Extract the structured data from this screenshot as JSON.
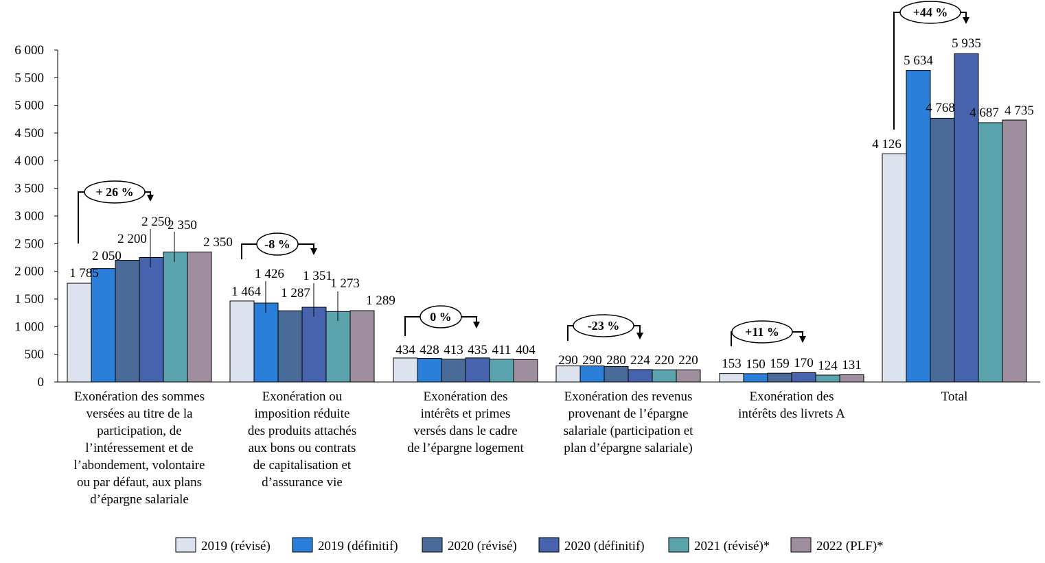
{
  "chart_data": {
    "type": "bar",
    "title": "",
    "xlabel": "",
    "ylabel": "",
    "ylim": [
      0,
      6000
    ],
    "yticks": [
      0,
      500,
      1000,
      1500,
      2000,
      2500,
      3000,
      3500,
      4000,
      4500,
      5000,
      5500,
      6000
    ],
    "ytick_labels": [
      "0",
      "500",
      "1 000",
      "1 500",
      "2 000",
      "2 500",
      "3 000",
      "3 500",
      "4 000",
      "4 500",
      "5 000",
      "5 500",
      "6 000"
    ],
    "grid": false,
    "legend_position": "bottom",
    "categories": [
      [
        "Exonération des sommes",
        "versées au titre de la",
        "participation, de",
        "l’intéressement et de",
        "l’abondement, volontaire",
        "ou par défaut, aux plans",
        "d’épargne salariale"
      ],
      [
        "Exonération ou",
        "imposition réduite",
        "des produits attachés",
        "aux bons ou contrats",
        "de capitalisation et",
        "d’assurance vie"
      ],
      [
        "Exonération des",
        "intérêts et primes",
        "versés dans le cadre",
        "de l’épargne logement"
      ],
      [
        "Exonération des revenus",
        "provenant de l’épargne",
        "salariale (participation et",
        "plan d’épargne salariale)"
      ],
      [
        "Exonération des",
        "intérêts des livrets A"
      ],
      [
        "Total"
      ]
    ],
    "series": [
      {
        "name": "2019 (révisé)",
        "color": "#DDE3EE",
        "values": [
          1785,
          1464,
          434,
          290,
          153,
          4126
        ],
        "labels": [
          "1 785",
          "1 464",
          "434",
          "290",
          "153",
          "4 126"
        ]
      },
      {
        "name": "2019 (définitif)",
        "color": "#2B7FD8",
        "values": [
          2050,
          1426,
          428,
          290,
          150,
          5634
        ],
        "labels": [
          "2 050",
          "1 426",
          "428",
          "290",
          "150",
          "5 634"
        ]
      },
      {
        "name": "2020 (révisé)",
        "color": "#4A6A98",
        "values": [
          2200,
          1287,
          413,
          280,
          159,
          4768
        ],
        "labels": [
          "2 200",
          "1 287",
          "413",
          "280",
          "159",
          "4 768"
        ]
      },
      {
        "name": "2020 (définitif)",
        "color": "#4863AE",
        "values": [
          2250,
          1351,
          435,
          224,
          170,
          5935
        ],
        "labels": [
          "2 250",
          "1 351",
          "435",
          "224",
          "170",
          "5 935"
        ]
      },
      {
        "name": "2021 (révisé)*",
        "color": "#5BA3AD",
        "values": [
          2350,
          1273,
          411,
          220,
          124,
          4687
        ],
        "labels": [
          "2 350",
          "1 273",
          "411",
          "220",
          "124",
          "4 687"
        ]
      },
      {
        "name": "2022 (PLF)*",
        "color": "#9E8E9E",
        "values": [
          2350,
          1289,
          404,
          220,
          131,
          4735
        ],
        "labels": [
          "2 350",
          "1 289",
          "404",
          "220",
          "131",
          "4 735"
        ]
      }
    ],
    "annotations": [
      {
        "category_index": 0,
        "from_series": "2019 (révisé)",
        "to_series": "2020 (définitif)",
        "text": "+ 26 %"
      },
      {
        "category_index": 1,
        "from_series": "2019 (révisé)",
        "to_series": "2020 (définitif)",
        "text": "-8 %"
      },
      {
        "category_index": 2,
        "from_series": "2019 (révisé)",
        "to_series": "2020 (définitif)",
        "text": "0 %"
      },
      {
        "category_index": 3,
        "from_series": "2019 (révisé)",
        "to_series": "2020 (définitif)",
        "text": "-23 %"
      },
      {
        "category_index": 4,
        "from_series": "2019 (révisé)",
        "to_series": "2020 (définitif)",
        "text": "+11 %"
      },
      {
        "category_index": 5,
        "from_series": "2019 (révisé)",
        "to_series": "2020 (définitif)",
        "text": "+44 %"
      }
    ]
  }
}
